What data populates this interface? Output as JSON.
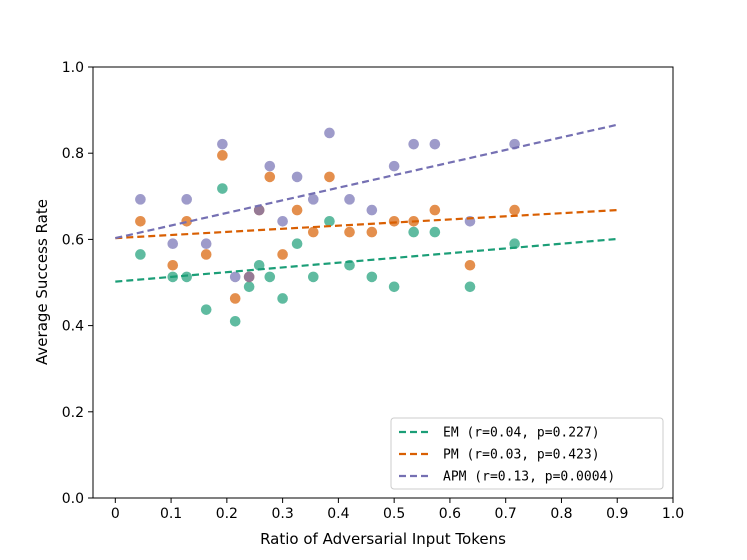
{
  "chart_data": {
    "type": "scatter",
    "title": "",
    "xlabel": "Ratio of Adversarial Input Tokens",
    "ylabel": "Average Success Rate",
    "xlim": [
      -0.04,
      1.0
    ],
    "ylim": [
      0.0,
      1.0
    ],
    "xticks": [
      0,
      0.1,
      0.2,
      0.3,
      0.4,
      0.5,
      0.6,
      0.7,
      0.8,
      0.9,
      1.0
    ],
    "xtick_labels": [
      "0",
      "0.1",
      "0.2",
      "0.3",
      "0.4",
      "0.5",
      "0.6",
      "0.7",
      "0.8",
      "0.9",
      "1.0"
    ],
    "yticks": [
      0.0,
      0.2,
      0.4,
      0.6,
      0.8,
      1.0
    ],
    "ytick_labels": [
      "0.0",
      "0.2",
      "0.4",
      "0.6",
      "0.8",
      "1.0"
    ],
    "grid": false,
    "legend_position": "lower-right",
    "series": [
      {
        "name": "EM",
        "legend_label": "EM (r=0.04, p=0.227)",
        "color": "#1b9e77",
        "trend": {
          "x": [
            0,
            0.9
          ],
          "y": [
            0.502,
            0.601
          ]
        },
        "points": [
          [
            0.045,
            0.565
          ],
          [
            0.103,
            0.513
          ],
          [
            0.128,
            0.513
          ],
          [
            0.163,
            0.437
          ],
          [
            0.192,
            0.718
          ],
          [
            0.215,
            0.41
          ],
          [
            0.24,
            0.49
          ],
          [
            0.258,
            0.54
          ],
          [
            0.277,
            0.513
          ],
          [
            0.3,
            0.463
          ],
          [
            0.326,
            0.59
          ],
          [
            0.355,
            0.513
          ],
          [
            0.384,
            0.642
          ],
          [
            0.42,
            0.54
          ],
          [
            0.46,
            0.513
          ],
          [
            0.5,
            0.49
          ],
          [
            0.535,
            0.617
          ],
          [
            0.573,
            0.617
          ],
          [
            0.636,
            0.49
          ],
          [
            0.716,
            0.59
          ]
        ]
      },
      {
        "name": "PM",
        "legend_label": "PM (r=0.03, p=0.423)",
        "color": "#d95f02",
        "trend": {
          "x": [
            0,
            0.9
          ],
          "y": [
            0.603,
            0.668
          ]
        },
        "points": [
          [
            0.045,
            0.642
          ],
          [
            0.103,
            0.54
          ],
          [
            0.128,
            0.642
          ],
          [
            0.163,
            0.565
          ],
          [
            0.192,
            0.795
          ],
          [
            0.215,
            0.463
          ],
          [
            0.24,
            0.513
          ],
          [
            0.258,
            0.668
          ],
          [
            0.277,
            0.745
          ],
          [
            0.3,
            0.565
          ],
          [
            0.326,
            0.668
          ],
          [
            0.355,
            0.617
          ],
          [
            0.384,
            0.745
          ],
          [
            0.42,
            0.617
          ],
          [
            0.46,
            0.617
          ],
          [
            0.5,
            0.642
          ],
          [
            0.535,
            0.642
          ],
          [
            0.573,
            0.668
          ],
          [
            0.636,
            0.54
          ],
          [
            0.716,
            0.668
          ]
        ]
      },
      {
        "name": "APM",
        "legend_label": "APM (r=0.13, p=0.0004)",
        "color": "#7570b3",
        "trend": {
          "x": [
            0,
            0.9
          ],
          "y": [
            0.603,
            0.866
          ]
        },
        "points": [
          [
            0.045,
            0.693
          ],
          [
            0.103,
            0.59
          ],
          [
            0.128,
            0.693
          ],
          [
            0.163,
            0.59
          ],
          [
            0.192,
            0.821
          ],
          [
            0.215,
            0.513
          ],
          [
            0.24,
            0.513
          ],
          [
            0.258,
            0.668
          ],
          [
            0.277,
            0.77
          ],
          [
            0.3,
            0.642
          ],
          [
            0.326,
            0.745
          ],
          [
            0.355,
            0.693
          ],
          [
            0.384,
            0.847
          ],
          [
            0.42,
            0.693
          ],
          [
            0.46,
            0.668
          ],
          [
            0.5,
            0.77
          ],
          [
            0.535,
            0.821
          ],
          [
            0.573,
            0.821
          ],
          [
            0.636,
            0.642
          ],
          [
            0.716,
            0.821
          ]
        ]
      }
    ]
  }
}
